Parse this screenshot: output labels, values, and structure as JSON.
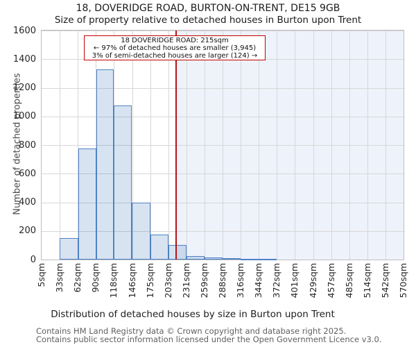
{
  "chart_data": {
    "type": "bar",
    "title": "18, DOVERIDGE ROAD, BURTON-ON-TRENT, DE15 9GB",
    "subtitle": "Size of property relative to detached houses in Burton upon Trent",
    "xlabel": "Distribution of detached houses by size in Burton upon Trent",
    "ylabel": "Number of detached properties",
    "ylim": [
      0,
      1600
    ],
    "y_ticks": [
      0,
      200,
      400,
      600,
      800,
      1000,
      1200,
      1400,
      1600
    ],
    "x_tick_labels": [
      "5sqm",
      "33sqm",
      "62sqm",
      "90sqm",
      "118sqm",
      "146sqm",
      "175sqm",
      "203sqm",
      "231sqm",
      "259sqm",
      "288sqm",
      "316sqm",
      "344sqm",
      "372sqm",
      "401sqm",
      "429sqm",
      "457sqm",
      "485sqm",
      "514sqm",
      "542sqm",
      "570sqm"
    ],
    "x_min_sqm": 5,
    "x_max_sqm": 570,
    "bin_edges_sqm": [
      33,
      62,
      90,
      118,
      146,
      175,
      203,
      231,
      259,
      288,
      316,
      344,
      372
    ],
    "counts": [
      150,
      775,
      1330,
      1075,
      400,
      175,
      100,
      25,
      15,
      10,
      5,
      5
    ],
    "grid": true,
    "marker": {
      "sqm": 215,
      "label": "18 DOVERIDGE ROAD: 215sqm",
      "smaller_text": "← 97% of detached houses are smaller (3,945)",
      "larger_text": "3% of semi-detached houses are larger (124) →",
      "smaller_pct": 97,
      "smaller_count": "3,945",
      "larger_pct": 3,
      "larger_count": "124"
    },
    "colors": {
      "bar_fill": "rgba(79,129,189,0.22)",
      "bar_border": "#4d82c4",
      "marker_line": "#b41414",
      "annotation_border": "#c00000",
      "shade_right_of_marker": "#eef2fb",
      "gridline": "#d7d7d7",
      "frame": "#bdbdbd"
    }
  },
  "footer": {
    "line1": "Contains HM Land Registry data © Crown copyright and database right 2025.",
    "line2": "Contains public sector information licensed under the Open Government Licence v3.0."
  }
}
